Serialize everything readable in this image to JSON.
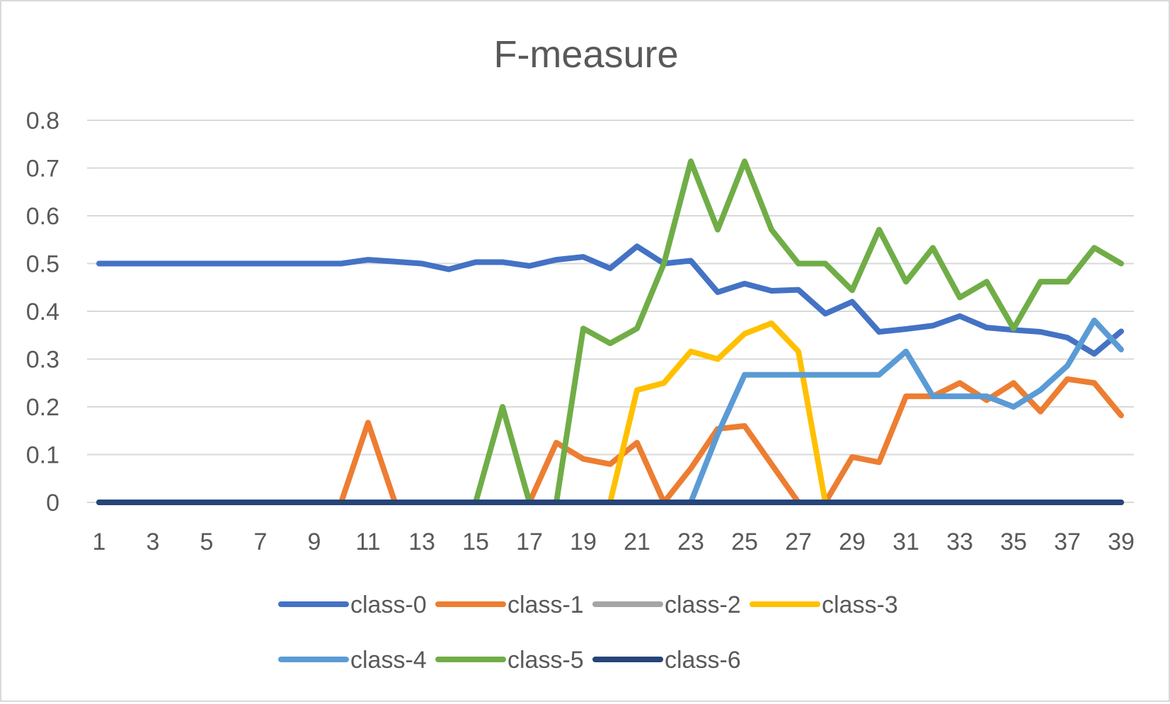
{
  "chart_data": {
    "type": "line",
    "title": "F-measure",
    "xlabel": "",
    "ylabel": "",
    "x": [
      1,
      2,
      3,
      4,
      5,
      6,
      7,
      8,
      9,
      10,
      11,
      12,
      13,
      14,
      15,
      16,
      17,
      18,
      19,
      20,
      21,
      22,
      23,
      24,
      25,
      26,
      27,
      28,
      29,
      30,
      31,
      32,
      33,
      34,
      35,
      36,
      37,
      38,
      39
    ],
    "x_tick_labels": [
      "1",
      "3",
      "5",
      "7",
      "9",
      "11",
      "13",
      "15",
      "17",
      "19",
      "21",
      "23",
      "25",
      "27",
      "29",
      "31",
      "33",
      "35",
      "37",
      "39"
    ],
    "y_tick_labels": [
      "0",
      "0.1",
      "0.2",
      "0.3",
      "0.4",
      "0.5",
      "0.6",
      "0.7",
      "0.8"
    ],
    "ylim": [
      0,
      0.8
    ],
    "grid": "horizontal",
    "legend_position": "bottom",
    "series": [
      {
        "name": "class-0",
        "color": "#4472c4",
        "values": [
          0.5,
          0.5,
          0.5,
          0.5,
          0.5,
          0.5,
          0.5,
          0.5,
          0.5,
          0.5,
          0.508,
          0.504,
          0.5,
          0.488,
          0.503,
          0.503,
          0.495,
          0.508,
          0.514,
          0.49,
          0.536,
          0.5,
          0.506,
          0.44,
          0.458,
          0.443,
          0.445,
          0.395,
          0.42,
          0.357,
          0.363,
          0.37,
          0.39,
          0.366,
          0.361,
          0.357,
          0.345,
          0.311,
          0.358
        ]
      },
      {
        "name": "class-1",
        "color": "#ed7d31",
        "values": [
          0,
          0,
          0,
          0,
          0,
          0,
          0,
          0,
          0,
          0,
          0.167,
          0,
          0,
          0,
          0,
          0,
          0,
          0.125,
          0.091,
          0.08,
          0.125,
          0,
          0.071,
          0.154,
          0.16,
          0.08,
          0,
          0,
          0.095,
          0.084,
          0.222,
          0.222,
          0.25,
          0.214,
          0.25,
          0.19,
          0.258,
          0.25,
          0.182
        ]
      },
      {
        "name": "class-2",
        "color": "#a5a5a5",
        "values": [
          0,
          0,
          0,
          0,
          0,
          0,
          0,
          0,
          0,
          0,
          0,
          0,
          0,
          0,
          0,
          0,
          0,
          0,
          0,
          0,
          0,
          0,
          0,
          0,
          0,
          0,
          0,
          0,
          0,
          0,
          0,
          0,
          0,
          0,
          0,
          0,
          0,
          0,
          0
        ]
      },
      {
        "name": "class-3",
        "color": "#ffc000",
        "values": [
          0,
          0,
          0,
          0,
          0,
          0,
          0,
          0,
          0,
          0,
          0,
          0,
          0,
          0,
          0,
          0,
          0,
          0,
          0,
          0,
          0.235,
          0.25,
          0.316,
          0.3,
          0.353,
          0.375,
          0.316,
          0,
          0,
          0,
          0,
          0,
          0,
          0,
          0,
          0,
          0,
          0,
          0
        ]
      },
      {
        "name": "class-4",
        "color": "#5b9bd5",
        "values": [
          0,
          0,
          0,
          0,
          0,
          0,
          0,
          0,
          0,
          0,
          0,
          0,
          0,
          0,
          0,
          0,
          0,
          0,
          0,
          0,
          0,
          0,
          0,
          0.143,
          0.267,
          0.267,
          0.267,
          0.267,
          0.267,
          0.267,
          0.316,
          0.222,
          0.222,
          0.222,
          0.2,
          0.235,
          0.286,
          0.381,
          0.32
        ]
      },
      {
        "name": "class-5",
        "color": "#70ad47",
        "values": [
          0,
          0,
          0,
          0,
          0,
          0,
          0,
          0,
          0,
          0,
          0,
          0,
          0,
          0,
          0,
          0.2,
          0,
          0,
          0.364,
          0.333,
          0.364,
          0.5,
          0.714,
          0.571,
          0.714,
          0.571,
          0.5,
          0.5,
          0.444,
          0.571,
          0.462,
          0.533,
          0.429,
          0.462,
          0.364,
          0.462,
          0.462,
          0.533,
          0.5
        ]
      },
      {
        "name": "class-6",
        "color": "#264478",
        "values": [
          0,
          0,
          0,
          0,
          0,
          0,
          0,
          0,
          0,
          0,
          0,
          0,
          0,
          0,
          0,
          0,
          0,
          0,
          0,
          0,
          0,
          0,
          0,
          0,
          0,
          0,
          0,
          0,
          0,
          0,
          0,
          0,
          0,
          0,
          0,
          0,
          0,
          0,
          0
        ]
      }
    ]
  }
}
